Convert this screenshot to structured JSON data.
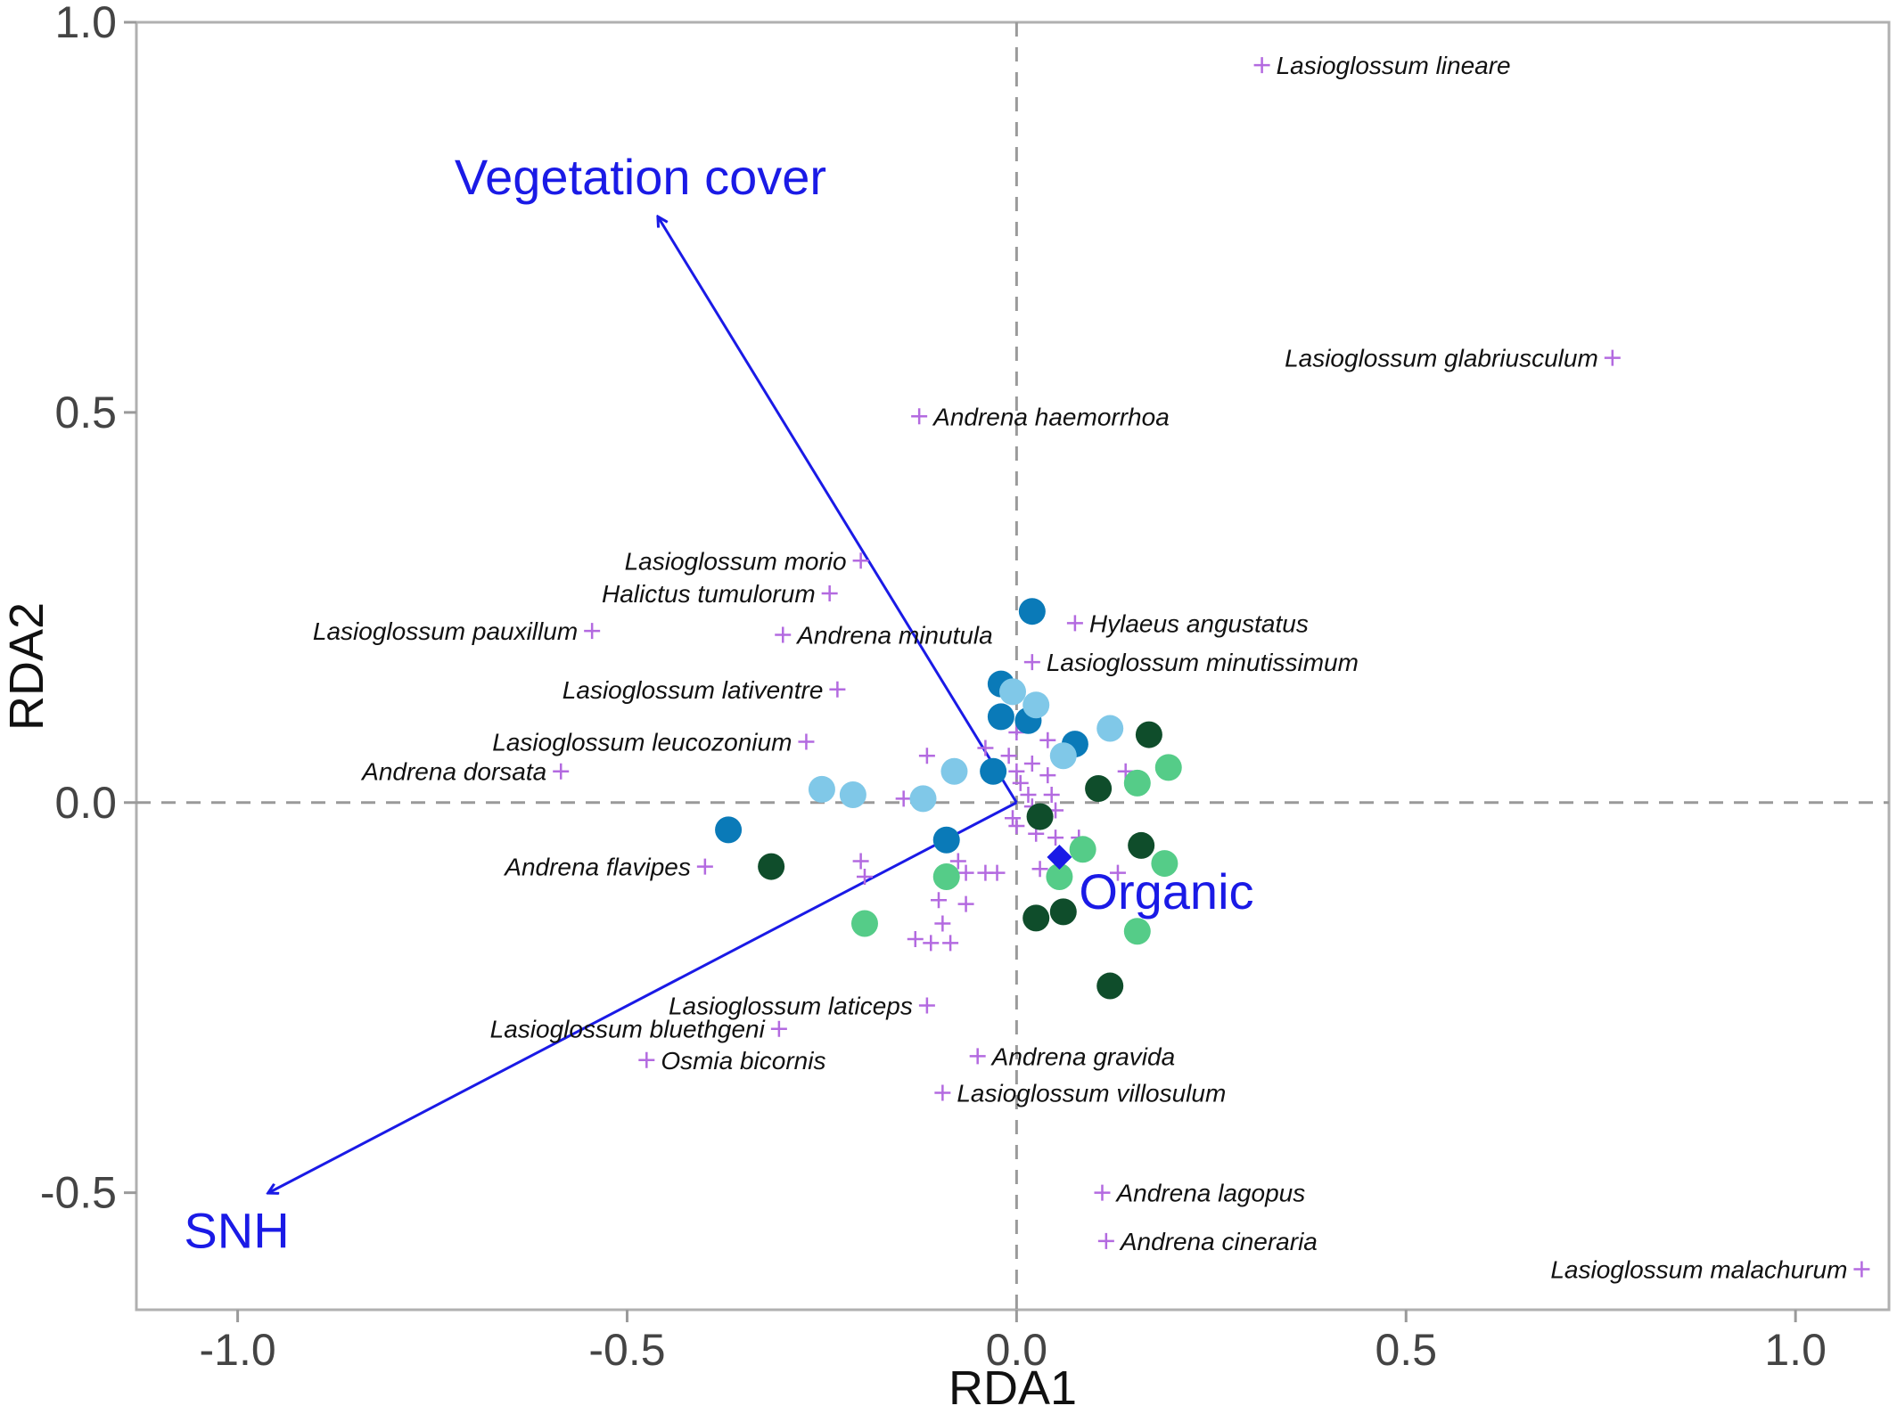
{
  "chart_data": {
    "type": "scatter",
    "title": "",
    "xlabel": "RDA1",
    "ylabel": "RDA2",
    "xlim": [
      -1.13,
      1.12
    ],
    "ylim": [
      -0.65,
      1.0
    ],
    "x_ticks": [
      -1.0,
      -0.5,
      0.0,
      0.5,
      1.0
    ],
    "x_tick_labels": [
      "-1.0",
      "-0.5",
      "0.0",
      "0.5",
      "1.0"
    ],
    "y_ticks": [
      -0.5,
      0.0,
      0.5,
      1.0
    ],
    "y_tick_labels": [
      "-0.5",
      "0.0",
      "0.5",
      "1.0"
    ],
    "grid": false,
    "reference_lines": {
      "x": 0,
      "y": 0,
      "style": "dashed"
    },
    "colors": {
      "species_marker": "#b36ae0",
      "arrows": "#1a1ae6",
      "site_dark_green": "#0f4d2b",
      "site_light_green": "#55cc88",
      "site_dark_blue": "#0a7ab8",
      "site_light_blue": "#80c8e8"
    },
    "arrows": [
      {
        "name": "Vegetation cover",
        "x": -0.46,
        "y": 0.75
      },
      {
        "name": "SNH",
        "x": -0.96,
        "y": -0.5
      }
    ],
    "centroids": [
      {
        "name": "Organic",
        "x": 0.055,
        "y": -0.07,
        "marker": "diamond"
      }
    ],
    "labeled_species": [
      {
        "name": "Lasioglossum lineare",
        "x": 0.315,
        "y": 0.945,
        "label_side": "right"
      },
      {
        "name": "Lasioglossum glabriusculum",
        "x": 0.765,
        "y": 0.57,
        "label_side": "left"
      },
      {
        "name": "Andrena haemorrhoa",
        "x": -0.125,
        "y": 0.495,
        "label_side": "right"
      },
      {
        "name": "Lasioglossum morio",
        "x": -0.2,
        "y": 0.31,
        "label_side": "left"
      },
      {
        "name": "Halictus tumulorum",
        "x": -0.24,
        "y": 0.268,
        "label_side": "left"
      },
      {
        "name": "Lasioglossum pauxillum",
        "x": -0.545,
        "y": 0.22,
        "label_side": "left"
      },
      {
        "name": "Andrena minutula",
        "x": -0.3,
        "y": 0.215,
        "label_side": "right"
      },
      {
        "name": "Hylaeus angustatus",
        "x": 0.075,
        "y": 0.23,
        "label_side": "right"
      },
      {
        "name": "Lasioglossum minutissimum",
        "x": 0.02,
        "y": 0.18,
        "label_side": "right"
      },
      {
        "name": "Lasioglossum lativentre",
        "x": -0.23,
        "y": 0.145,
        "label_side": "left"
      },
      {
        "name": "Lasioglossum leucozonium",
        "x": -0.27,
        "y": 0.078,
        "label_side": "left"
      },
      {
        "name": "Andrena dorsata",
        "x": -0.585,
        "y": 0.04,
        "label_side": "left"
      },
      {
        "name": "Andrena flavipes",
        "x": -0.4,
        "y": -0.082,
        "label_side": "left"
      },
      {
        "name": "Lasioglossum laticeps",
        "x": -0.115,
        "y": -0.26,
        "label_side": "left"
      },
      {
        "name": "Lasioglossum bluethgeni",
        "x": -0.305,
        "y": -0.29,
        "label_side": "left"
      },
      {
        "name": "Osmia bicornis",
        "x": -0.475,
        "y": -0.33,
        "label_side": "right"
      },
      {
        "name": "Andrena gravida",
        "x": -0.05,
        "y": -0.325,
        "label_side": "right"
      },
      {
        "name": "Lasioglossum villosulum",
        "x": -0.095,
        "y": -0.372,
        "label_side": "right"
      },
      {
        "name": "Andrena lagopus",
        "x": 0.11,
        "y": -0.5,
        "label_side": "right"
      },
      {
        "name": "Andrena cineraria",
        "x": 0.115,
        "y": -0.562,
        "label_side": "right"
      },
      {
        "name": "Lasioglossum malachurum",
        "x": 1.085,
        "y": -0.598,
        "label_side": "left"
      }
    ],
    "unlabeled_species": [
      [
        -0.115,
        0.06
      ],
      [
        -0.145,
        0.005
      ],
      [
        -0.04,
        0.07
      ],
      [
        -0.01,
        0.06
      ],
      [
        0.0,
        0.09
      ],
      [
        0.04,
        0.08
      ],
      [
        0.0,
        0.04
      ],
      [
        0.02,
        0.05
      ],
      [
        0.04,
        0.035
      ],
      [
        0.005,
        0.025
      ],
      [
        0.015,
        0.01
      ],
      [
        0.045,
        0.01
      ],
      [
        0.02,
        -0.005
      ],
      [
        0.05,
        -0.01
      ],
      [
        0.03,
        -0.025
      ],
      [
        0.0,
        -0.03
      ],
      [
        0.025,
        -0.04
      ],
      [
        0.05,
        -0.045
      ],
      [
        0.08,
        -0.045
      ],
      [
        0.14,
        0.04
      ],
      [
        0.13,
        -0.09
      ],
      [
        -0.2,
        -0.075
      ],
      [
        -0.195,
        -0.095
      ],
      [
        -0.075,
        -0.075
      ],
      [
        -0.065,
        -0.09
      ],
      [
        -0.04,
        -0.09
      ],
      [
        -0.025,
        -0.09
      ],
      [
        -0.09,
        -0.1
      ],
      [
        -0.1,
        -0.125
      ],
      [
        -0.065,
        -0.13
      ],
      [
        -0.13,
        -0.175
      ],
      [
        -0.11,
        -0.18
      ],
      [
        -0.085,
        -0.18
      ],
      [
        -0.095,
        -0.155
      ],
      [
        -0.005,
        -0.02
      ],
      [
        0.03,
        -0.085
      ]
    ],
    "sites": [
      {
        "group": "dark-blue",
        "x": 0.02,
        "y": 0.245
      },
      {
        "group": "dark-blue",
        "x": -0.02,
        "y": 0.152
      },
      {
        "group": "dark-blue",
        "x": -0.02,
        "y": 0.11
      },
      {
        "group": "dark-blue",
        "x": 0.015,
        "y": 0.105
      },
      {
        "group": "dark-blue",
        "x": 0.075,
        "y": 0.075
      },
      {
        "group": "dark-blue",
        "x": -0.03,
        "y": 0.04
      },
      {
        "group": "dark-blue",
        "x": -0.37,
        "y": -0.035
      },
      {
        "group": "dark-blue",
        "x": -0.09,
        "y": -0.048
      },
      {
        "group": "light-blue",
        "x": -0.005,
        "y": 0.142
      },
      {
        "group": "light-blue",
        "x": 0.025,
        "y": 0.125
      },
      {
        "group": "light-blue",
        "x": 0.06,
        "y": 0.06
      },
      {
        "group": "light-blue",
        "x": 0.12,
        "y": 0.095
      },
      {
        "group": "light-blue",
        "x": -0.08,
        "y": 0.04
      },
      {
        "group": "light-blue",
        "x": -0.25,
        "y": 0.017
      },
      {
        "group": "light-blue",
        "x": -0.21,
        "y": 0.01
      },
      {
        "group": "light-blue",
        "x": -0.12,
        "y": 0.005
      },
      {
        "group": "dark-green",
        "x": 0.17,
        "y": 0.087
      },
      {
        "group": "dark-green",
        "x": 0.105,
        "y": 0.018
      },
      {
        "group": "dark-green",
        "x": 0.03,
        "y": -0.018
      },
      {
        "group": "dark-green",
        "x": 0.16,
        "y": -0.055
      },
      {
        "group": "dark-green",
        "x": -0.315,
        "y": -0.082
      },
      {
        "group": "dark-green",
        "x": 0.025,
        "y": -0.148
      },
      {
        "group": "dark-green",
        "x": 0.06,
        "y": -0.14
      },
      {
        "group": "dark-green",
        "x": 0.12,
        "y": -0.235
      },
      {
        "group": "light-green",
        "x": 0.195,
        "y": 0.045
      },
      {
        "group": "light-green",
        "x": 0.155,
        "y": 0.025
      },
      {
        "group": "light-green",
        "x": 0.085,
        "y": -0.06
      },
      {
        "group": "light-green",
        "x": 0.19,
        "y": -0.078
      },
      {
        "group": "light-green",
        "x": 0.055,
        "y": -0.095
      },
      {
        "group": "light-green",
        "x": -0.09,
        "y": -0.095
      },
      {
        "group": "light-green",
        "x": -0.195,
        "y": -0.155
      },
      {
        "group": "light-green",
        "x": 0.155,
        "y": -0.165
      }
    ]
  }
}
